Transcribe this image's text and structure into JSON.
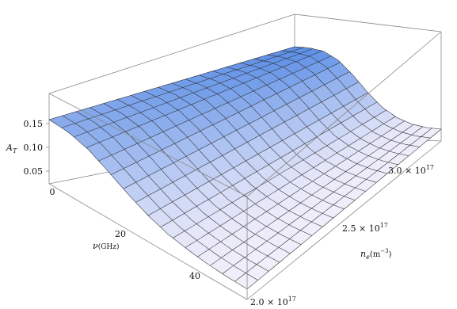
{
  "chart_data": {
    "type": "surface3d",
    "title": "",
    "zlabel": {
      "main": "A",
      "sub": "T"
    },
    "xlabel": {
      "main": "ν",
      "unit": "(GHz)"
    },
    "ylabel": {
      "main": "n",
      "sub": "e",
      "unit": "(m",
      "exp": "−3",
      "close": ")"
    },
    "x_ticks": [
      "0",
      "20",
      "40"
    ],
    "y_ticks": [
      {
        "mant": "2.0",
        "exp": "17"
      },
      {
        "mant": "2.5",
        "exp": "17"
      },
      {
        "mant": "3.0",
        "exp": "17"
      }
    ],
    "z_ticks": [
      "0.15",
      "0.10",
      "0.05"
    ],
    "x_range": [
      0,
      50
    ],
    "y_range": [
      2e+17,
      3e+17
    ],
    "z_range": [
      0,
      0.19
    ],
    "surface_samples": {
      "nu_GHz": [
        0,
        5,
        10,
        15,
        20,
        25,
        30,
        35,
        40,
        45,
        50
      ],
      "A_T_near_ne_3e17": [
        0.185,
        0.184,
        0.178,
        0.16,
        0.13,
        0.095,
        0.065,
        0.045,
        0.033,
        0.027,
        0.025
      ],
      "A_T_near_ne_2e17": [
        0.135,
        0.132,
        0.12,
        0.098,
        0.075,
        0.055,
        0.04,
        0.032,
        0.026,
        0.023,
        0.022
      ]
    },
    "colors": {
      "surface_high": "#5b8ee6",
      "surface_low": "#f4f0fb",
      "mesh": "#2a2a2a",
      "box": "#888888"
    }
  }
}
